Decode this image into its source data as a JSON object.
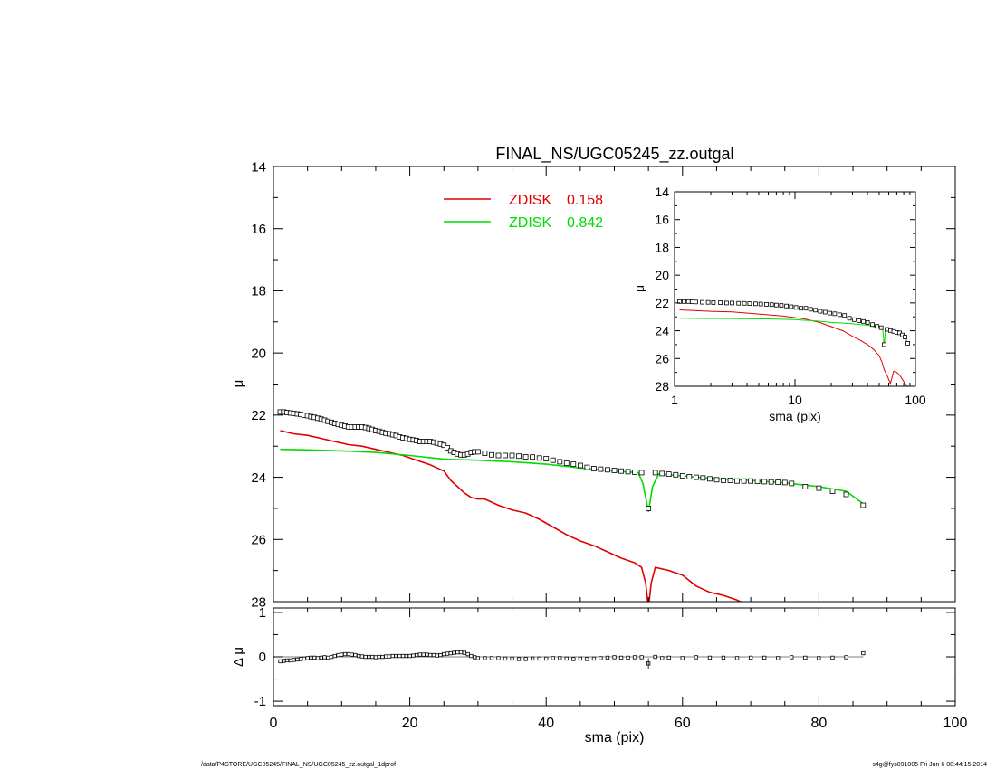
{
  "figure": {
    "title": "FINAL_NS/UGC05245_zz.outgal",
    "footer_left": "/data/P4STORE/UGC05245/FINAL_NS/UGC05245_zz.outgal_1dprof",
    "footer_right": "s4g@fys091005  Fri Jun  6 08:44:15 2014"
  },
  "colors": {
    "red": "#e00000",
    "green": "#00dd00",
    "data": "#000000",
    "axis": "#000000"
  },
  "chart_data": [
    {
      "id": "main",
      "type": "line",
      "title": "FINAL_NS/UGC05245_zz.outgal",
      "xlabel": "",
      "ylabel": "μ",
      "xlim": [
        0,
        100
      ],
      "ylim": [
        28,
        14
      ],
      "yticks": [
        14,
        16,
        18,
        20,
        22,
        24,
        26,
        28
      ],
      "grid": false,
      "legend_position": "top-center",
      "legend": [
        {
          "label": "ZDISK",
          "value": "0.158",
          "color": "#e00000"
        },
        {
          "label": "ZDISK",
          "value": "0.842",
          "color": "#00dd00"
        }
      ],
      "series": [
        {
          "name": "ZDISK 0.158",
          "kind": "line",
          "color": "#e00000",
          "x": [
            1,
            3,
            5,
            7,
            9,
            11,
            13,
            15,
            17,
            19,
            21,
            23,
            25,
            26,
            27,
            28,
            29,
            30,
            31,
            33,
            35,
            37,
            39,
            41,
            43,
            45,
            47,
            49,
            51,
            53,
            54,
            54.6,
            55,
            55.4,
            56,
            58,
            60,
            62,
            64,
            66,
            68,
            69
          ],
          "y": [
            22.5,
            22.6,
            22.65,
            22.75,
            22.85,
            22.95,
            23.0,
            23.1,
            23.2,
            23.3,
            23.45,
            23.6,
            23.8,
            24.1,
            24.3,
            24.5,
            24.65,
            24.7,
            24.7,
            24.9,
            25.05,
            25.15,
            25.35,
            25.6,
            25.85,
            26.05,
            26.2,
            26.4,
            26.6,
            26.75,
            26.9,
            27.4,
            28.2,
            27.4,
            26.9,
            27.0,
            27.15,
            27.5,
            27.7,
            27.8,
            27.95,
            28.05
          ]
        },
        {
          "name": "ZDISK 0.842",
          "kind": "line",
          "color": "#00dd00",
          "x": [
            1,
            5,
            10,
            15,
            20,
            25,
            30,
            35,
            40,
            45,
            50,
            53.5,
            54.2,
            55,
            55.6,
            56.5,
            60,
            65,
            70,
            75,
            80,
            84,
            86.5
          ],
          "y": [
            23.1,
            23.12,
            23.15,
            23.2,
            23.3,
            23.42,
            23.45,
            23.5,
            23.58,
            23.7,
            23.8,
            23.85,
            24.2,
            25.1,
            24.3,
            23.9,
            23.95,
            24.05,
            24.1,
            24.18,
            24.3,
            24.45,
            24.85
          ]
        },
        {
          "name": "data",
          "kind": "markers",
          "color": "#000000",
          "x": [
            1,
            1.5,
            2,
            2.5,
            3,
            3.5,
            4,
            4.5,
            5,
            5.5,
            6,
            6.5,
            7,
            7.5,
            8,
            8.5,
            9,
            9.5,
            10,
            10.5,
            11,
            11.5,
            12,
            12.5,
            13,
            13.5,
            14,
            14.5,
            15,
            15.5,
            16,
            16.5,
            17,
            17.5,
            18,
            18.5,
            19,
            19.5,
            20,
            20.5,
            21,
            21.5,
            22,
            22.5,
            23,
            23.5,
            24,
            24.5,
            25,
            25.5,
            26,
            26.5,
            27,
            27.5,
            28,
            28.5,
            29,
            29.5,
            30,
            31,
            32,
            33,
            34,
            35,
            36,
            37,
            38,
            39,
            40,
            41,
            42,
            43,
            44,
            45,
            46,
            47,
            48,
            49,
            50,
            51,
            52,
            53,
            54,
            55,
            56,
            57,
            58,
            59,
            60,
            61,
            62,
            63,
            64,
            65,
            66,
            67,
            68,
            69,
            70,
            71,
            72,
            73,
            74,
            75,
            76,
            78,
            80,
            82,
            84,
            86.5
          ],
          "y": [
            21.9,
            21.9,
            21.92,
            21.93,
            21.95,
            21.96,
            21.98,
            22.0,
            22.02,
            22.05,
            22.07,
            22.1,
            22.13,
            22.16,
            22.2,
            22.23,
            22.27,
            22.3,
            22.33,
            22.35,
            22.38,
            22.38,
            22.38,
            22.38,
            22.38,
            22.4,
            22.43,
            22.46,
            22.5,
            22.52,
            22.55,
            22.58,
            22.6,
            22.63,
            22.66,
            22.7,
            22.73,
            22.75,
            22.78,
            22.8,
            22.82,
            22.85,
            22.85,
            22.85,
            22.85,
            22.87,
            22.9,
            22.93,
            22.97,
            23.05,
            23.15,
            23.2,
            23.25,
            23.28,
            23.28,
            23.25,
            23.2,
            23.18,
            23.18,
            23.23,
            23.28,
            23.3,
            23.3,
            23.3,
            23.32,
            23.34,
            23.35,
            23.38,
            23.4,
            23.45,
            23.5,
            23.55,
            23.58,
            23.62,
            23.68,
            23.72,
            23.74,
            23.76,
            23.78,
            23.8,
            23.82,
            23.84,
            23.85,
            25.0,
            23.85,
            23.88,
            23.9,
            23.92,
            23.95,
            23.98,
            24.0,
            24.02,
            24.05,
            24.08,
            24.1,
            24.1,
            24.12,
            24.12,
            24.12,
            24.13,
            24.14,
            24.15,
            24.16,
            24.17,
            24.2,
            24.3,
            24.35,
            24.45,
            24.55,
            24.9
          ]
        }
      ]
    },
    {
      "id": "inset",
      "type": "line",
      "xlabel": "sma (pix)",
      "ylabel": "μ",
      "xscale": "log",
      "xlim": [
        1,
        100
      ],
      "ylim": [
        28,
        14
      ],
      "xticks": [
        1,
        10,
        100
      ],
      "yticks": [
        14,
        16,
        18,
        20,
        22,
        24,
        26,
        28
      ],
      "grid": false,
      "series": [
        {
          "name": "ZDISK 0.158",
          "kind": "line",
          "color": "#e00000",
          "x": [
            1.1,
            2,
            3,
            5,
            8,
            12,
            16,
            20,
            25,
            30,
            35,
            40,
            45,
            50,
            53,
            55,
            58,
            62,
            66,
            70,
            74,
            78,
            82,
            86
          ],
          "y": [
            22.5,
            22.6,
            22.65,
            22.8,
            22.95,
            23.15,
            23.4,
            23.7,
            24.0,
            24.4,
            24.7,
            25.0,
            25.35,
            25.8,
            26.3,
            26.8,
            27.2,
            27.8,
            26.9,
            27.0,
            27.2,
            27.5,
            27.8,
            28.0
          ]
        },
        {
          "name": "ZDISK 0.842",
          "kind": "line",
          "color": "#00dd00",
          "x": [
            1.1,
            3,
            6,
            10,
            15,
            20,
            25,
            30,
            35,
            40,
            45,
            50,
            53.5,
            55,
            56.5,
            60,
            65,
            70,
            75,
            80,
            86.5
          ],
          "y": [
            23.1,
            23.12,
            23.15,
            23.2,
            23.3,
            23.4,
            23.45,
            23.5,
            23.55,
            23.6,
            23.7,
            23.8,
            23.85,
            25.1,
            23.9,
            23.95,
            24.05,
            24.1,
            24.18,
            24.3,
            24.85
          ]
        },
        {
          "name": "data",
          "kind": "markers",
          "color": "#000000",
          "x": [
            1.1,
            1.2,
            1.3,
            1.4,
            1.5,
            1.7,
            1.9,
            2.1,
            2.4,
            2.7,
            3,
            3.4,
            3.8,
            4.2,
            4.7,
            5.2,
            5.8,
            6.4,
            7,
            7.7,
            8.5,
            9.3,
            10.2,
            11.2,
            12.3,
            13.5,
            14.8,
            16.2,
            17.8,
            19.5,
            21.4,
            23.5,
            25.8,
            28.3,
            31,
            34,
            37,
            40,
            44,
            48,
            52,
            55,
            58,
            62,
            66,
            70,
            74,
            78,
            82,
            86.5
          ],
          "y": [
            21.9,
            21.9,
            21.9,
            21.92,
            21.93,
            21.95,
            21.96,
            21.97,
            21.98,
            22.0,
            22.0,
            22.02,
            22.03,
            22.05,
            22.06,
            22.08,
            22.1,
            22.12,
            22.15,
            22.18,
            22.22,
            22.27,
            22.32,
            22.38,
            22.38,
            22.45,
            22.52,
            22.6,
            22.66,
            22.73,
            22.78,
            22.85,
            22.9,
            23.1,
            23.2,
            23.28,
            23.33,
            23.4,
            23.55,
            23.68,
            23.78,
            25.0,
            23.9,
            23.98,
            24.05,
            24.12,
            24.15,
            24.3,
            24.45,
            24.9
          ]
        }
      ]
    },
    {
      "id": "residual",
      "type": "scatter",
      "xlabel": "sma (pix)",
      "ylabel": "Δ μ",
      "xlim": [
        0,
        100
      ],
      "ylim": [
        -1.1,
        1.1
      ],
      "xticks": [
        0,
        20,
        40,
        60,
        80,
        100
      ],
      "yticks": [
        -1,
        0,
        1
      ],
      "grid": false,
      "series": [
        {
          "name": "residual",
          "kind": "markers",
          "color": "#000000",
          "x": [
            1,
            1.5,
            2,
            2.5,
            3,
            3.5,
            4,
            4.5,
            5,
            5.5,
            6,
            6.5,
            7,
            7.5,
            8,
            8.5,
            9,
            9.5,
            10,
            10.5,
            11,
            11.5,
            12,
            12.5,
            13,
            13.5,
            14,
            14.5,
            15,
            15.5,
            16,
            16.5,
            17,
            17.5,
            18,
            18.5,
            19,
            19.5,
            20,
            20.5,
            21,
            21.5,
            22,
            22.5,
            23,
            23.5,
            24,
            24.5,
            25,
            25.5,
            26,
            26.5,
            27,
            27.5,
            28,
            28.5,
            29,
            29.5,
            30,
            31,
            32,
            33,
            34,
            35,
            36,
            37,
            38,
            39,
            40,
            41,
            42,
            43,
            44,
            45,
            46,
            47,
            48,
            49,
            50,
            51,
            52,
            53,
            54,
            55,
            56,
            57,
            58,
            60,
            62,
            64,
            66,
            68,
            70,
            72,
            74,
            76,
            78,
            80,
            82,
            84,
            86.5
          ],
          "y": [
            -0.1,
            -0.09,
            -0.08,
            -0.08,
            -0.07,
            -0.06,
            -0.05,
            -0.04,
            -0.03,
            -0.02,
            -0.02,
            -0.03,
            -0.02,
            -0.01,
            -0.02,
            0.0,
            0.02,
            0.04,
            0.05,
            0.06,
            0.06,
            0.05,
            0.04,
            0.02,
            0.01,
            0.0,
            0.0,
            0.0,
            -0.01,
            0.0,
            0.0,
            0.01,
            0.01,
            0.02,
            0.02,
            0.02,
            0.02,
            0.02,
            0.02,
            0.03,
            0.04,
            0.05,
            0.05,
            0.05,
            0.04,
            0.04,
            0.03,
            0.04,
            0.06,
            0.07,
            0.08,
            0.09,
            0.1,
            0.1,
            0.09,
            0.06,
            0.02,
            -0.01,
            -0.03,
            -0.03,
            -0.03,
            -0.03,
            -0.04,
            -0.04,
            -0.05,
            -0.05,
            -0.04,
            -0.04,
            -0.04,
            -0.03,
            -0.03,
            -0.04,
            -0.05,
            -0.04,
            -0.05,
            -0.04,
            -0.03,
            -0.02,
            -0.01,
            -0.02,
            -0.02,
            -0.01,
            -0.01,
            -0.15,
            0.0,
            -0.03,
            -0.02,
            -0.03,
            -0.01,
            -0.02,
            -0.02,
            -0.03,
            -0.02,
            -0.02,
            -0.03,
            -0.01,
            -0.02,
            -0.03,
            -0.02,
            -0.01,
            0.08
          ],
          "error_x": [
            55
          ],
          "error_y": [
            0.12
          ]
        },
        {
          "name": "zero",
          "kind": "hline",
          "color": "#000000",
          "y": 0,
          "x_start": 1,
          "x_end": 86.5
        }
      ]
    }
  ]
}
